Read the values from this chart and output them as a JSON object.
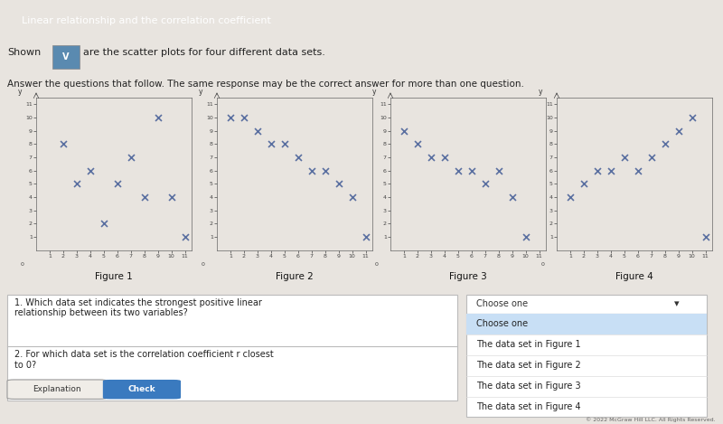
{
  "title": "Linear relationship and the correlation coefficient",
  "shown_text": "Shown",
  "shown_text2": "are the scatter plots for four different data sets.",
  "answer_text": "Answer the questions that follow. The same response may be the correct answer for more than one question.",
  "fig1_data": {
    "x": [
      2,
      3,
      4,
      5,
      6,
      7,
      8,
      9,
      10,
      11
    ],
    "y": [
      8,
      5,
      6,
      2,
      5,
      7,
      4,
      10,
      4,
      1
    ]
  },
  "fig2_data": {
    "x": [
      1,
      2,
      3,
      4,
      5,
      6,
      7,
      8,
      9,
      10,
      11
    ],
    "y": [
      10,
      10,
      9,
      8,
      8,
      7,
      6,
      6,
      5,
      4,
      1
    ]
  },
  "fig3_data": {
    "x": [
      1,
      2,
      3,
      4,
      5,
      6,
      7,
      8,
      9,
      10
    ],
    "y": [
      9,
      8,
      7,
      7,
      6,
      6,
      5,
      6,
      4,
      1
    ]
  },
  "fig4_data": {
    "x": [
      1,
      2,
      3,
      4,
      5,
      6,
      7,
      8,
      9,
      10,
      11
    ],
    "y": [
      4,
      5,
      6,
      6,
      7,
      6,
      7,
      8,
      9,
      10,
      1
    ]
  },
  "fig_labels": [
    "Figure 1",
    "Figure 2",
    "Figure 3",
    "Figure 4"
  ],
  "marker": "x",
  "marker_color": "#5a6fa0",
  "marker_size": 25,
  "marker_lw": 1.2,
  "bg_color": "#e8e4df",
  "plot_bg": "#e8e4df",
  "title_bar_color": "#2a4a6a",
  "title_text_color": "#ffffff",
  "q1_text": "1. Which data set indicates the strongest positive linear\nrelationship between its two variables?",
  "q2_text": "2. For which data set is the correlation coefficient r closest\nto 0?",
  "explanation_btn": "Explanation",
  "check_btn": "Check",
  "copyright": "© 2022 McGraw Hill LLC. All Rights Reserved.",
  "xlim": [
    0,
    11.5
  ],
  "ylim": [
    0,
    11.5
  ],
  "xticks": [
    1,
    2,
    3,
    4,
    5,
    6,
    7,
    8,
    9,
    10,
    11
  ],
  "yticks": [
    1,
    2,
    3,
    4,
    5,
    6,
    7,
    8,
    9,
    10,
    11
  ],
  "dropdown_items": [
    "Choose one",
    "The data set in Figure 1",
    "The data set in Figure 2",
    "The data set in Figure 3",
    "The data set in Figure 4"
  ]
}
